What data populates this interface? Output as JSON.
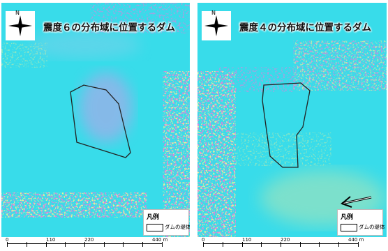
{
  "panels": {
    "left": {
      "title": "震度６の分布域に位置するダム",
      "north_label": "N",
      "legend": {
        "title": "凡例",
        "item": "ダムの堤体"
      },
      "scale": {
        "labels": [
          "0",
          "110",
          "220",
          "440 m"
        ]
      }
    },
    "right": {
      "title": "震度４の分布域に位置するダム",
      "north_label": "N",
      "legend": {
        "title": "凡例",
        "item": "ダムの堤体"
      },
      "scale": {
        "labels": [
          "0",
          "110",
          "220",
          "440 m"
        ]
      }
    }
  },
  "colors": {
    "base": "#38dcea",
    "noise_magenta": "#d82fb0",
    "noise_yellow": "#e8e04a",
    "noise_purple": "#8a6ad0",
    "dam_outline": "#222222"
  },
  "icons": [
    "north-arrow-icon",
    "arrow-icon"
  ]
}
